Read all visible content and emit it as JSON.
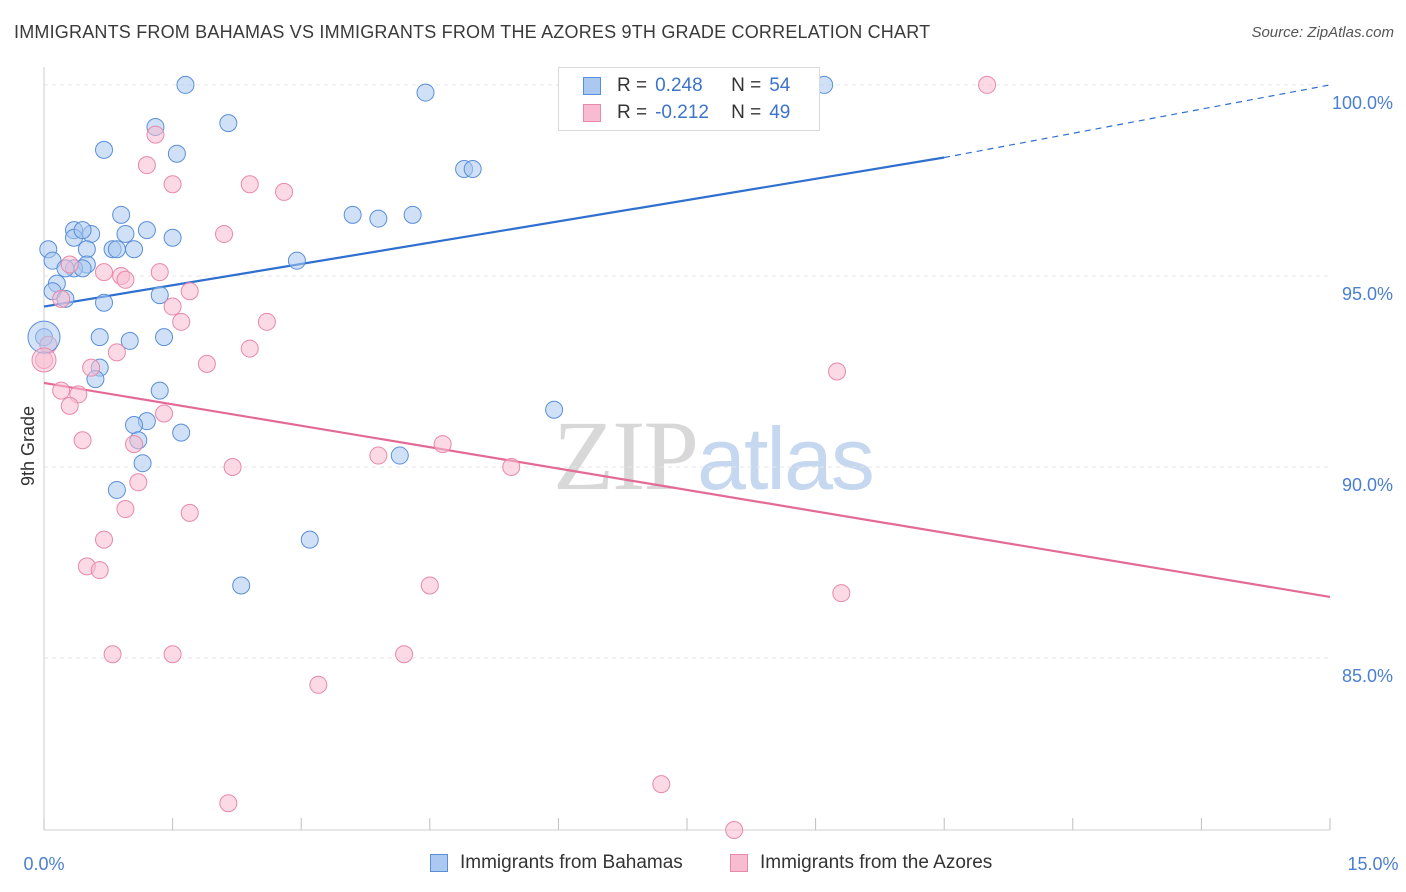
{
  "title": "IMMIGRANTS FROM BAHAMAS VS IMMIGRANTS FROM THE AZORES 9TH GRADE CORRELATION CHART",
  "source": "Source: ZipAtlas.com",
  "watermark": {
    "zip": "ZIP",
    "atlas": "atlas"
  },
  "legend_box": {
    "rows": [
      {
        "r_label": "R =",
        "r_value": "0.248",
        "n_label": "N =",
        "n_value": "54"
      },
      {
        "r_label": "R =",
        "r_value": "-0.212",
        "n_label": "N =",
        "n_value": "49"
      }
    ]
  },
  "colors": {
    "blue_fill": "#aac8f0",
    "blue_stroke": "#5a8fd8",
    "blue_line": "#2f6fd0",
    "pink_fill": "#f8bcd0",
    "pink_stroke": "#e889a8",
    "pink_line": "#e46a96",
    "tick_text": "#4a7fd0",
    "grid": "#e6e6e6"
  },
  "chart_data": {
    "type": "scatter",
    "title": "IMMIGRANTS FROM BAHAMAS VS IMMIGRANTS FROM THE AZORES 9TH GRADE CORRELATION CHART",
    "xlabel": "",
    "ylabel": "9th Grade",
    "xlim": [
      0,
      15
    ],
    "ylim": [
      80.5,
      100.6
    ],
    "x_tick_labels": [
      "0.0%",
      "15.0%"
    ],
    "y_ticks": [
      85,
      90,
      95,
      100
    ],
    "y_tick_labels": [
      "85.0%",
      "90.0%",
      "95.0%",
      "100.0%"
    ],
    "grid": "horizontal dashed",
    "legend": "bottom-center",
    "series": [
      {
        "name": "Immigrants from Bahamas",
        "R": 0.248,
        "N": 54,
        "trend": {
          "x0": 0,
          "y0": 94.2,
          "x1": 10.5,
          "y1": 98.1,
          "dashed_to_x": 15,
          "dashed_to_y": 100.0
        },
        "points": [
          [
            1.65,
            100.0
          ],
          [
            4.45,
            99.8
          ],
          [
            9.1,
            100.0
          ],
          [
            7.3,
            100.0
          ],
          [
            2.15,
            99.0
          ],
          [
            1.3,
            98.9
          ],
          [
            0.7,
            98.3
          ],
          [
            1.55,
            98.2
          ],
          [
            4.9,
            97.8
          ],
          [
            5.0,
            97.8
          ],
          [
            3.6,
            96.6
          ],
          [
            3.9,
            96.5
          ],
          [
            4.3,
            96.6
          ],
          [
            0.9,
            96.6
          ],
          [
            1.2,
            96.2
          ],
          [
            0.35,
            96.2
          ],
          [
            0.55,
            96.1
          ],
          [
            0.35,
            96.0
          ],
          [
            1.5,
            96.0
          ],
          [
            0.95,
            96.1
          ],
          [
            0.5,
            95.7
          ],
          [
            0.05,
            95.7
          ],
          [
            0.8,
            95.7
          ],
          [
            0.85,
            95.7
          ],
          [
            2.95,
            95.4
          ],
          [
            0.1,
            95.4
          ],
          [
            0.5,
            95.3
          ],
          [
            0.35,
            95.2
          ],
          [
            0.45,
            95.2
          ],
          [
            0.15,
            94.8
          ],
          [
            0.1,
            94.6
          ],
          [
            1.35,
            94.5
          ],
          [
            0.25,
            94.4
          ],
          [
            0.7,
            94.3
          ],
          [
            0.0,
            93.4
          ],
          [
            0.65,
            93.4
          ],
          [
            1.0,
            93.3
          ],
          [
            1.4,
            93.4
          ],
          [
            0.65,
            92.6
          ],
          [
            0.6,
            92.3
          ],
          [
            1.35,
            92.0
          ],
          [
            5.95,
            91.5
          ],
          [
            1.2,
            91.2
          ],
          [
            1.05,
            91.1
          ],
          [
            1.6,
            90.9
          ],
          [
            1.1,
            90.7
          ],
          [
            4.15,
            90.3
          ],
          [
            1.15,
            90.1
          ],
          [
            0.85,
            89.4
          ],
          [
            3.1,
            88.1
          ],
          [
            2.3,
            86.9
          ],
          [
            0.25,
            95.2
          ],
          [
            0.45,
            96.2
          ],
          [
            1.05,
            95.7
          ]
        ]
      },
      {
        "name": "Immigrants from the Azores",
        "R": -0.212,
        "N": 49,
        "trend": {
          "x0": 0,
          "y0": 92.2,
          "x1": 15,
          "y1": 86.6
        },
        "points": [
          [
            11.0,
            100.0
          ],
          [
            1.3,
            98.7
          ],
          [
            1.2,
            97.9
          ],
          [
            1.5,
            97.4
          ],
          [
            2.4,
            97.4
          ],
          [
            2.8,
            97.2
          ],
          [
            2.1,
            96.1
          ],
          [
            0.3,
            95.3
          ],
          [
            0.7,
            95.1
          ],
          [
            1.35,
            95.1
          ],
          [
            0.9,
            95.0
          ],
          [
            0.95,
            94.9
          ],
          [
            1.7,
            94.6
          ],
          [
            0.2,
            94.4
          ],
          [
            1.5,
            94.2
          ],
          [
            1.6,
            93.8
          ],
          [
            2.6,
            93.8
          ],
          [
            0.05,
            93.2
          ],
          [
            2.4,
            93.1
          ],
          [
            0.85,
            93.0
          ],
          [
            0.0,
            92.8
          ],
          [
            1.9,
            92.7
          ],
          [
            0.55,
            92.6
          ],
          [
            9.25,
            92.5
          ],
          [
            0.2,
            92.0
          ],
          [
            0.4,
            91.9
          ],
          [
            0.3,
            91.6
          ],
          [
            1.4,
            91.4
          ],
          [
            0.45,
            90.7
          ],
          [
            1.05,
            90.6
          ],
          [
            4.65,
            90.6
          ],
          [
            3.9,
            90.3
          ],
          [
            2.2,
            90.0
          ],
          [
            5.45,
            90.0
          ],
          [
            1.1,
            89.6
          ],
          [
            0.95,
            88.9
          ],
          [
            1.7,
            88.8
          ],
          [
            0.7,
            88.1
          ],
          [
            0.5,
            87.4
          ],
          [
            0.65,
            87.3
          ],
          [
            4.5,
            86.9
          ],
          [
            9.3,
            86.7
          ],
          [
            0.8,
            85.1
          ],
          [
            1.5,
            85.1
          ],
          [
            4.2,
            85.1
          ],
          [
            3.2,
            84.3
          ],
          [
            7.2,
            81.7
          ],
          [
            2.15,
            81.2
          ],
          [
            8.05,
            80.5
          ]
        ]
      }
    ]
  },
  "bottom_legend": [
    {
      "label": "Immigrants from Bahamas"
    },
    {
      "label": "Immigrants from the Azores"
    }
  ]
}
